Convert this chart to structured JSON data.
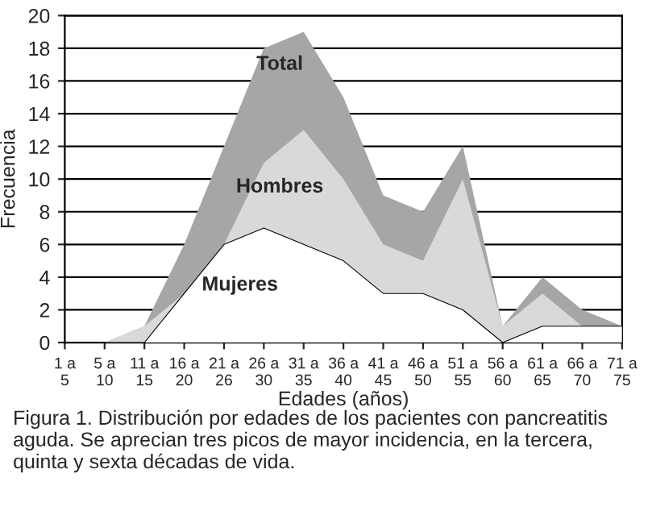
{
  "chart_data": {
    "type": "area",
    "xlabel": "Edades (años)",
    "ylabel": "Frecuencia",
    "categories": [
      "1 a 5",
      "5 a 10",
      "11 a 15",
      "16 a 20",
      "21 a 26",
      "26 a 30",
      "31 a 35",
      "36 a 40",
      "41 a 45",
      "46 a 50",
      "51 a 55",
      "56 a 60",
      "61 a 65",
      "66 a 70",
      "71 a 75"
    ],
    "series": [
      {
        "name": "Total",
        "color": "#a6a6a6",
        "values": [
          0,
          0,
          1,
          6,
          12,
          18,
          19,
          15,
          9,
          8,
          12,
          1,
          4,
          2,
          1
        ]
      },
      {
        "name": "Hombres",
        "color": "#d9d9d9",
        "values": [
          0,
          0,
          1,
          3,
          6,
          11,
          13,
          10,
          6,
          5,
          10,
          1,
          3,
          1,
          0
        ]
      },
      {
        "name": "Mujeres",
        "color": "#ffffff",
        "values": [
          0,
          0,
          0,
          3,
          6,
          7,
          6,
          5,
          3,
          3,
          2,
          0,
          1,
          1,
          1
        ]
      }
    ],
    "ylim": [
      0,
      20
    ],
    "yticks": [
      0,
      2,
      4,
      6,
      8,
      10,
      12,
      14,
      16,
      18,
      20
    ],
    "grid": "y",
    "legend": false,
    "annotations": [
      "Figura 1. Distribución por edades de los pacientes con pancreatitis aguda. Se aprecian tres picos de mayor incidencia, en la tercera, quinta y sexta décadas de vida."
    ]
  }
}
